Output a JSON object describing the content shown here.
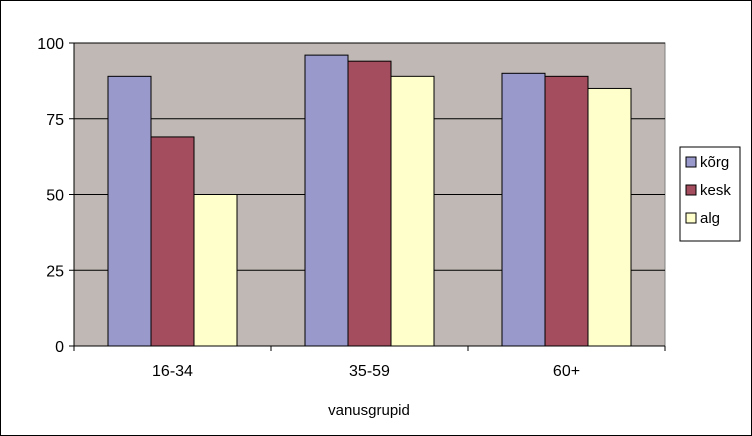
{
  "chart_data": {
    "type": "bar",
    "categories": [
      "16-34",
      "35-59",
      "60+"
    ],
    "series": [
      {
        "name": "kõrg",
        "values": [
          89,
          96,
          90
        ],
        "color": "#9999cc"
      },
      {
        "name": "kesk",
        "values": [
          69,
          94,
          89
        ],
        "color": "#a34d5e"
      },
      {
        "name": "alg",
        "values": [
          50,
          89,
          85
        ],
        "color": "#ffffcc"
      }
    ],
    "title": "",
    "xlabel": "vanusgrupid",
    "ylabel": "",
    "ylim": [
      0,
      100
    ],
    "yticks": [
      0,
      25,
      50,
      75,
      100
    ],
    "grid": true,
    "plot_background": "#c0b8b4",
    "legend_position": "right"
  }
}
